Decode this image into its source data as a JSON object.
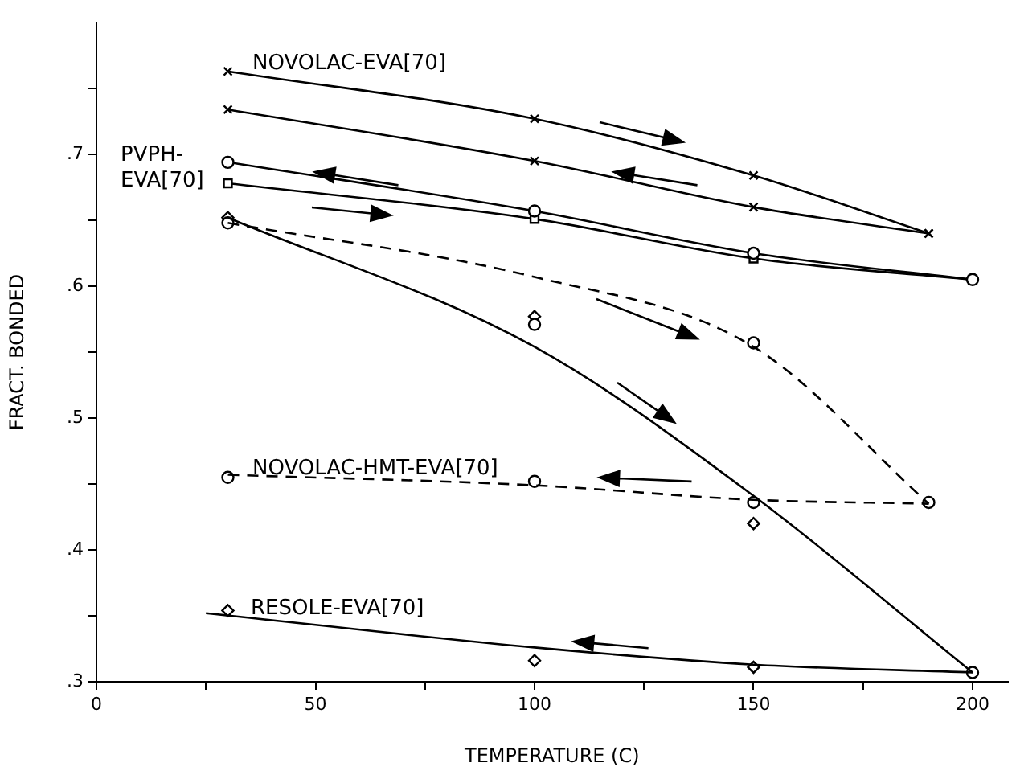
{
  "chart_data": {
    "type": "line",
    "xlabel": "TEMPERATURE (C)",
    "ylabel": "FRACT. BONDED",
    "xlim": [
      0,
      208
    ],
    "ylim": [
      0.3,
      0.8
    ],
    "xticks": [
      0,
      {
        "value": 25,
        "label": null
      },
      50,
      {
        "value": 75,
        "label": null
      },
      100,
      {
        "value": 125,
        "label": null
      },
      150,
      {
        "value": 175,
        "label": null
      },
      200
    ],
    "yticks": [
      {
        "value": 0.3,
        "label": ".3"
      },
      {
        "value": 0.35,
        "label": null
      },
      {
        "value": 0.4,
        "label": ".4"
      },
      {
        "value": 0.45,
        "label": null
      },
      {
        "value": 0.5,
        "label": ".5"
      },
      {
        "value": 0.55,
        "label": null
      },
      {
        "value": 0.6,
        "label": ".6"
      },
      {
        "value": 0.65,
        "label": null
      },
      {
        "value": 0.7,
        "label": ".7"
      },
      {
        "value": 0.75,
        "label": null
      }
    ],
    "grid": false,
    "legend": false,
    "series": [
      {
        "color": "#000000",
        "x": [
          30,
          100,
          150,
          190
        ],
        "values": [
          0.763,
          0.727,
          0.684,
          0.64
        ],
        "marker": "cross",
        "line_style": "solid"
      },
      {
        "color": "#000000",
        "x": [
          30,
          100,
          150,
          190
        ],
        "values": [
          0.734,
          0.695,
          0.66,
          0.64
        ],
        "marker": "cross",
        "line_style": "solid"
      },
      {
        "color": "#000000",
        "x": [
          30,
          100,
          150,
          200
        ],
        "values": [
          0.694,
          0.657,
          0.625,
          0.605
        ],
        "marker": "circle",
        "line_style": "solid"
      },
      {
        "color": "#000000",
        "x": [
          30,
          100,
          150,
          200
        ],
        "values": [
          0.678,
          0.651,
          0.621,
          0.605
        ],
        "marker": "square",
        "line_style": "solid"
      },
      {
        "color": "#000000",
        "x": [
          30,
          100,
          150,
          190
        ],
        "values": [
          0.648,
          0.607,
          0.554,
          0.435
        ],
        "marker": "none",
        "line_style": "dashed"
      },
      {
        "color": "#000000",
        "x": [
          30,
          100,
          150,
          200
        ],
        "values": [
          0.652,
          0.554,
          0.441,
          0.307
        ],
        "marker": "none",
        "line_style": "solid"
      },
      {
        "color": "#000000",
        "x": [
          30,
          100,
          150,
          190
        ],
        "values": [
          0.457,
          0.449,
          0.438,
          0.435
        ],
        "marker": "none",
        "line_style": "dashed"
      },
      {
        "color": "#000000",
        "x": [
          25,
          100,
          150,
          200
        ],
        "values": [
          0.352,
          0.326,
          0.313,
          0.307
        ],
        "marker": "none",
        "line_style": "solid"
      },
      {
        "type": "scatter",
        "color": "#000000",
        "x": [
          30,
          30,
          100,
          100,
          150,
          150,
          190,
          200
        ],
        "values": [
          0.648,
          0.455,
          0.452,
          0.571,
          0.436,
          0.557,
          0.436,
          0.307
        ],
        "marker": "circle"
      },
      {
        "type": "scatter",
        "color": "#000000",
        "x": [
          30,
          100,
          150,
          30,
          100,
          150
        ],
        "values": [
          0.354,
          0.316,
          0.311,
          0.652,
          0.577,
          0.42
        ],
        "marker": "diamond"
      }
    ],
    "annotations": [
      "NOVOLAC-EVA[70]",
      "PVPH-\nEVA[70]",
      "NOVOLAC-HMT-EVA[70]",
      "RESOLE-EVA[70]"
    ]
  }
}
